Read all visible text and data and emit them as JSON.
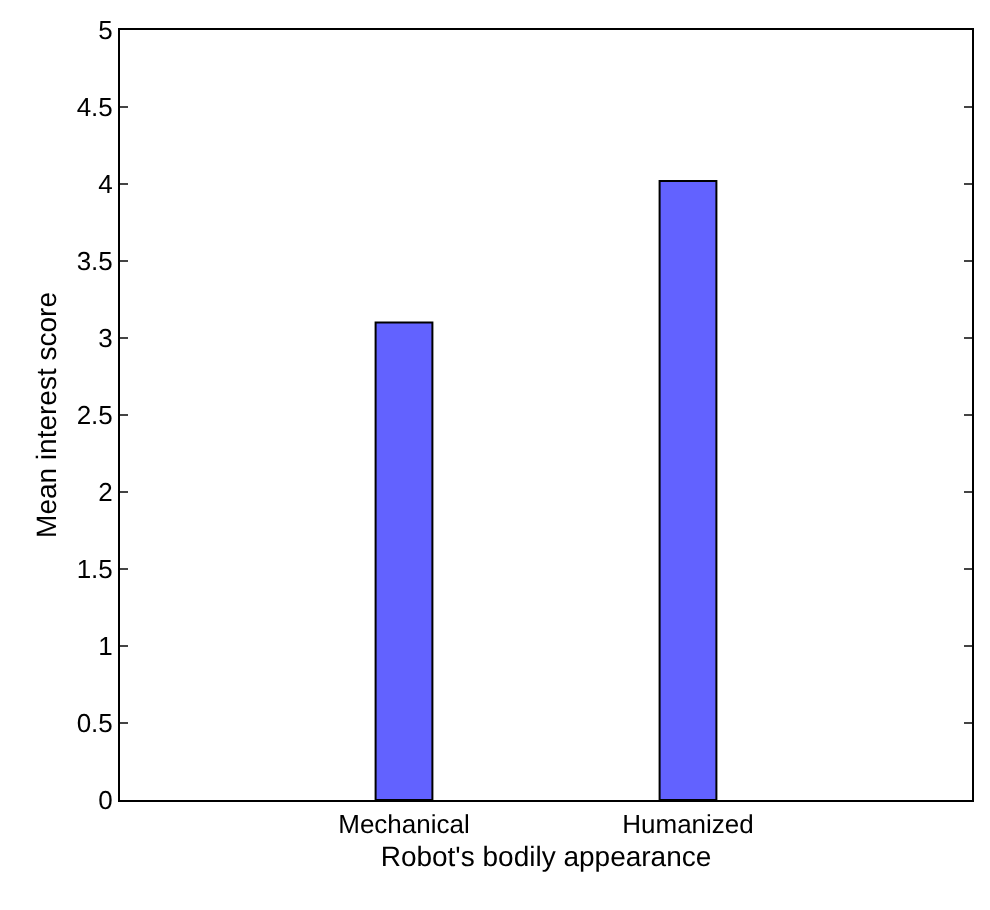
{
  "chart_data": {
    "type": "bar",
    "xlabel": "Robot's bodily appearance",
    "ylabel": "Mean interest score",
    "categories": [
      "Mechanical",
      "Humanized"
    ],
    "values": [
      3.1,
      4.02
    ],
    "color": "#6262ff",
    "ylim": [
      0,
      5
    ],
    "yticks": [
      0,
      0.5,
      1,
      1.5,
      2,
      2.5,
      3,
      3.5,
      4,
      4.5,
      5
    ]
  }
}
